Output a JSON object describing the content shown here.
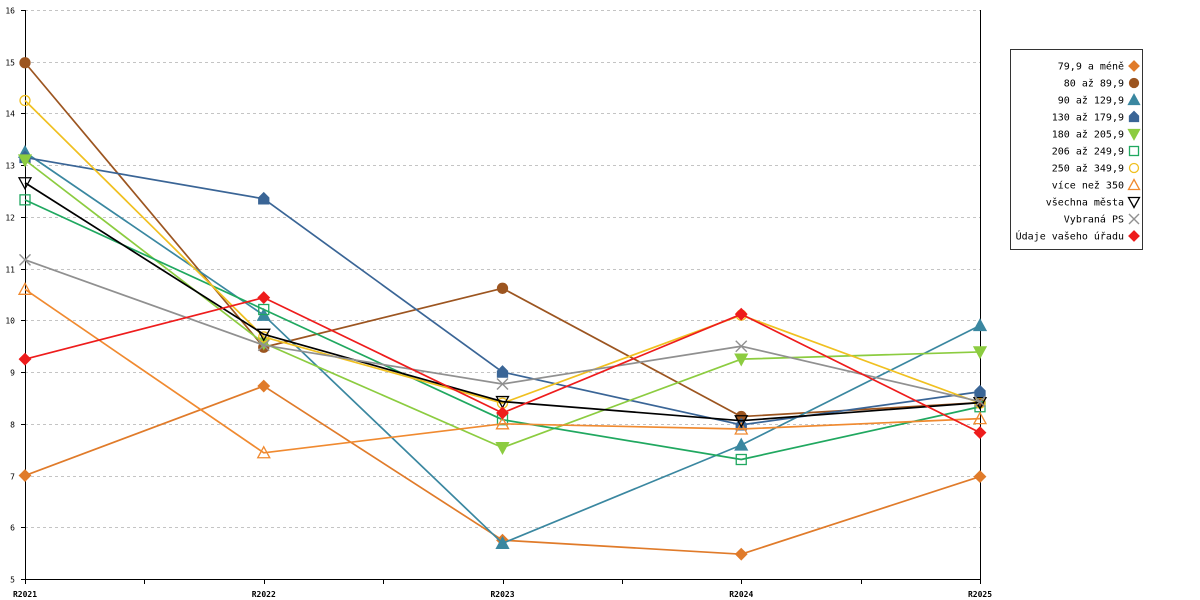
{
  "chart_data": {
    "type": "line",
    "title": "",
    "xlabel": "",
    "ylabel": "",
    "categories": [
      "R2021",
      "R2022",
      "R2023",
      "R2024",
      "R2025"
    ],
    "ylim": [
      5,
      16
    ],
    "yticks": [
      5,
      6,
      7,
      8,
      9,
      10,
      11,
      12,
      13,
      14,
      15,
      16
    ],
    "grid": true,
    "legend_position": "right",
    "series": [
      {
        "name": "79,9 a méně",
        "color": "#e07b2a",
        "marker": "diamond",
        "filled": true,
        "values": [
          7.0,
          8.73,
          5.75,
          5.48,
          6.98
        ]
      },
      {
        "name": "80 až 89,9",
        "color": "#9c5520",
        "marker": "circle",
        "filled": true,
        "values": [
          14.98,
          9.48,
          10.62,
          8.14,
          8.41
        ]
      },
      {
        "name": "90 až 129,9",
        "color": "#3a87a0",
        "marker": "triangle-up",
        "filled": true,
        "values": [
          13.25,
          10.1,
          5.69,
          7.59,
          9.9
        ]
      },
      {
        "name": "130 až 179,9",
        "color": "#3a6596",
        "marker": "house",
        "filled": true,
        "values": [
          13.15,
          12.35,
          9.0,
          7.98,
          8.62
        ]
      },
      {
        "name": "180 až 205,9",
        "color": "#8ccc40",
        "marker": "triangle-down",
        "filled": true,
        "values": [
          13.1,
          9.56,
          7.54,
          9.25,
          9.39
        ]
      },
      {
        "name": "206 až 249,9",
        "color": "#20a860",
        "marker": "square",
        "filled": false,
        "values": [
          12.33,
          10.21,
          8.08,
          7.31,
          8.33
        ]
      },
      {
        "name": "250 až 349,9",
        "color": "#f0c020",
        "marker": "circle",
        "filled": false,
        "values": [
          14.25,
          9.68,
          8.4,
          10.1,
          8.4
        ]
      },
      {
        "name": "více než 350",
        "color": "#f08a30",
        "marker": "triangle-up",
        "filled": false,
        "values": [
          10.6,
          7.44,
          8.0,
          7.9,
          8.1
        ]
      },
      {
        "name": "všechna města",
        "color": "#000000",
        "marker": "triangle-down",
        "filled": false,
        "values": [
          12.66,
          9.73,
          8.43,
          8.06,
          8.41
        ]
      },
      {
        "name": "Vybraná PS",
        "color": "#909090",
        "marker": "cross",
        "filled": false,
        "values": [
          11.17,
          9.52,
          8.77,
          9.5,
          8.43
        ]
      },
      {
        "name": "Údaje vašeho úřadu",
        "color": "#ee1c1c",
        "marker": "diamond",
        "filled": true,
        "values": [
          9.25,
          10.44,
          8.21,
          10.12,
          7.83
        ]
      }
    ]
  }
}
